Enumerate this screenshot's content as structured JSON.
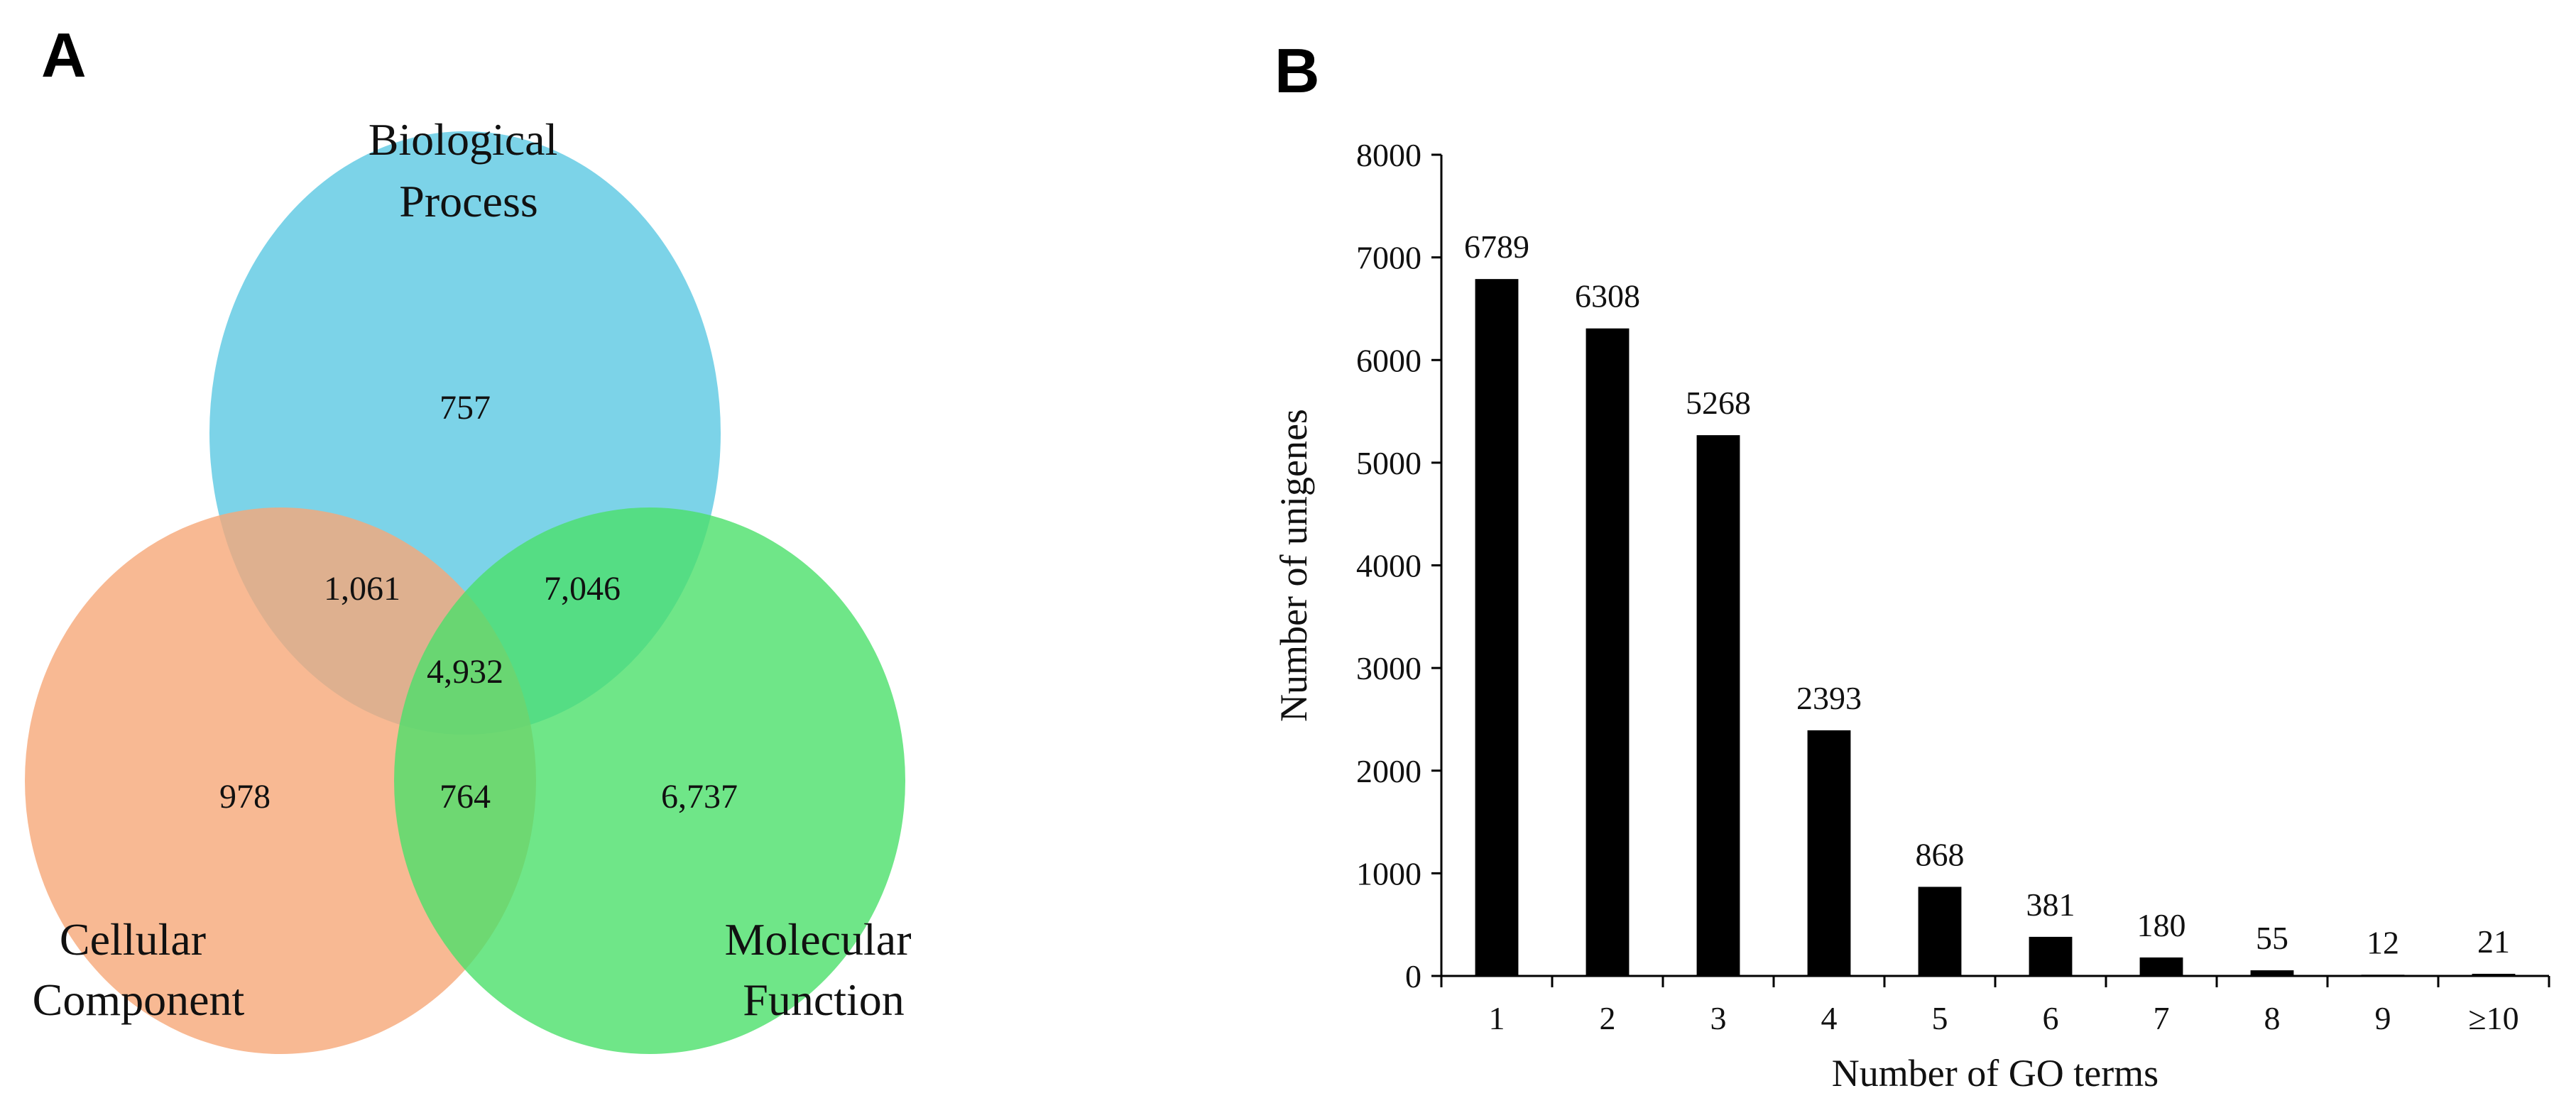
{
  "panel_a": {
    "letter": "A",
    "sets": [
      {
        "key": "bp",
        "label_lines": [
          "Biological",
          "Process"
        ],
        "color": "#5bc8e2"
      },
      {
        "key": "cc",
        "label_lines": [
          "Cellular",
          "Component"
        ],
        "color": "#f6a878"
      },
      {
        "key": "mf",
        "label_lines": [
          "Molecular",
          "Function"
        ],
        "color": "#4be06a"
      }
    ],
    "regions": {
      "bp_only": "757",
      "cc_only": "978",
      "mf_only": "6,737",
      "bp_cc": "1,061",
      "bp_mf": "7,046",
      "cc_mf": "764",
      "all": "4,932"
    },
    "overlap_colors": {
      "bp_mf": "#00e070"
    }
  },
  "chart_data": {
    "panel_letter": "B",
    "type": "bar",
    "categories": [
      "1",
      "2",
      "3",
      "4",
      "5",
      "6",
      "7",
      "8",
      "9",
      "≥10"
    ],
    "values": [
      6789,
      6308,
      5268,
      2393,
      868,
      381,
      180,
      55,
      12,
      21
    ],
    "data_labels": [
      "6789",
      "6308",
      "5268",
      "2393",
      "868",
      "381",
      "180",
      "55",
      "12",
      "21"
    ],
    "xlabel": "Number of GO terms",
    "ylabel": "Number of unigenes",
    "ylim": [
      0,
      8000
    ],
    "yticks": [
      0,
      1000,
      2000,
      3000,
      4000,
      5000,
      6000,
      7000,
      8000
    ],
    "bar_color": "#000000",
    "grid": false,
    "legend": "none"
  }
}
